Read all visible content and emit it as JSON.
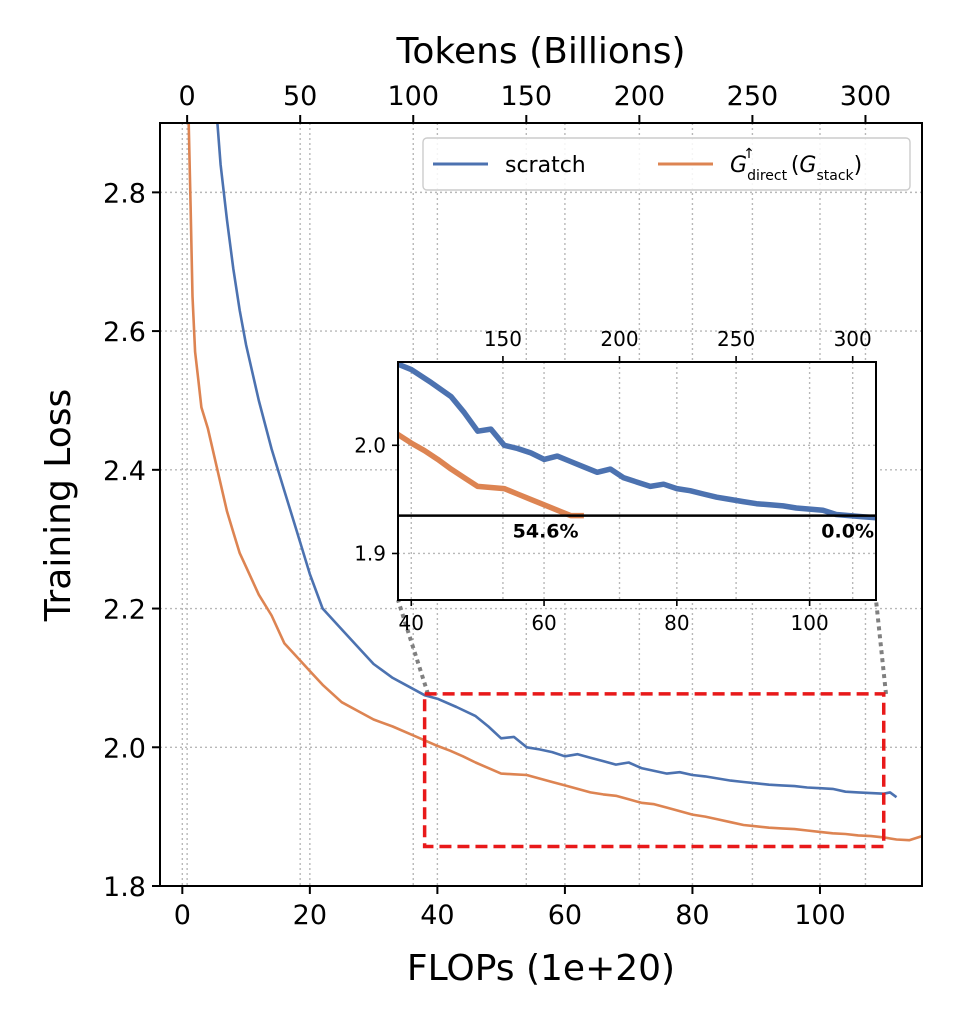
{
  "chart_data": [
    {
      "type": "line",
      "title": "",
      "xlabel": "FLOPs (1e+20)",
      "x2label": "Tokens (Billions)",
      "ylabel": "Training Loss",
      "xlim": [
        -3.5,
        116
      ],
      "ylim": [
        1.8,
        2.9
      ],
      "x2lim": [
        -12,
        325
      ],
      "xticks": [
        "0",
        "20",
        "40",
        "60",
        "80",
        "100"
      ],
      "xtick_values": [
        0,
        20,
        40,
        60,
        80,
        100
      ],
      "x2ticks": [
        "0",
        "50",
        "100",
        "150",
        "200",
        "250",
        "300"
      ],
      "x2tick_values": [
        0,
        50,
        100,
        150,
        200,
        250,
        300
      ],
      "yticks": [
        "1.8",
        "2.0",
        "2.2",
        "2.4",
        "2.6",
        "2.8"
      ],
      "ytick_values": [
        1.8,
        2.0,
        2.2,
        2.4,
        2.6,
        2.8
      ],
      "grid": true,
      "legend_position": "top-right",
      "zoom_box": {
        "x": [
          38,
          110
        ],
        "y": [
          1.857,
          2.077
        ]
      },
      "series": [
        {
          "name": "scratch",
          "color": "#4c72b0",
          "x": [
            5.5,
            6,
            7,
            8,
            9,
            10,
            12,
            14,
            16,
            18,
            20,
            22,
            25,
            28,
            30,
            33,
            35,
            38,
            40,
            43,
            46,
            48,
            50,
            52,
            54,
            56,
            58,
            60,
            62,
            64,
            66,
            68,
            70,
            72,
            74,
            76,
            78,
            80,
            82,
            84,
            86,
            88,
            90,
            92,
            94,
            96,
            98,
            100,
            102,
            104,
            106,
            108,
            110,
            111,
            112
          ],
          "y": [
            2.9,
            2.84,
            2.76,
            2.69,
            2.63,
            2.58,
            2.5,
            2.43,
            2.37,
            2.31,
            2.25,
            2.2,
            2.17,
            2.14,
            2.12,
            2.1,
            2.09,
            2.075,
            2.07,
            2.058,
            2.045,
            2.03,
            2.013,
            2.015,
            2.0,
            1.997,
            1.993,
            1.987,
            1.99,
            1.985,
            1.98,
            1.975,
            1.978,
            1.97,
            1.966,
            1.962,
            1.964,
            1.96,
            1.958,
            1.955,
            1.952,
            1.95,
            1.948,
            1.946,
            1.945,
            1.944,
            1.942,
            1.941,
            1.94,
            1.936,
            1.935,
            1.934,
            1.933,
            1.935,
            1.928
          ]
        },
        {
          "name": "G_direct↑(G_stack)",
          "color": "#dd8452",
          "x": [
            1.0,
            1.3,
            1.6,
            2,
            2.5,
            3,
            4,
            5,
            6,
            7,
            8,
            9,
            10,
            12,
            14,
            16,
            18,
            20,
            22,
            25,
            28,
            30,
            33,
            36,
            38,
            40,
            42,
            44,
            46,
            48,
            50,
            52,
            54,
            56,
            58,
            60,
            62,
            64,
            66,
            68,
            70,
            72,
            74,
            76,
            78,
            80,
            82,
            84,
            86,
            88,
            90,
            92,
            94,
            96,
            98,
            100,
            102,
            104,
            106,
            108,
            110,
            112,
            114,
            116
          ],
          "y": [
            2.9,
            2.78,
            2.65,
            2.57,
            2.53,
            2.49,
            2.46,
            2.42,
            2.38,
            2.34,
            2.31,
            2.28,
            2.26,
            2.22,
            2.19,
            2.15,
            2.13,
            2.11,
            2.09,
            2.065,
            2.05,
            2.04,
            2.03,
            2.018,
            2.01,
            2.002,
            1.995,
            1.987,
            1.978,
            1.97,
            1.962,
            1.961,
            1.96,
            1.955,
            1.95,
            1.945,
            1.94,
            1.935,
            1.932,
            1.93,
            1.925,
            1.92,
            1.918,
            1.913,
            1.908,
            1.903,
            1.9,
            1.896,
            1.892,
            1.888,
            1.886,
            1.884,
            1.883,
            1.882,
            1.88,
            1.878,
            1.876,
            1.875,
            1.873,
            1.872,
            1.87,
            1.867,
            1.866,
            1.872
          ]
        }
      ]
    },
    {
      "type": "line",
      "title": "",
      "xlim": [
        38,
        110
      ],
      "ylim": [
        1.857,
        2.077
      ],
      "x2lim": [
        105,
        310
      ],
      "xticks": [
        "40",
        "60",
        "80",
        "100"
      ],
      "xtick_values": [
        40,
        60,
        80,
        100
      ],
      "x2ticks": [
        "150",
        "200",
        "250",
        "300"
      ],
      "x2tick_values": [
        150,
        200,
        250,
        300
      ],
      "yticks": [
        "1.9",
        "2.0"
      ],
      "ytick_values": [
        1.9,
        2.0
      ],
      "grid": true,
      "reference_line": 1.935,
      "annotations": [
        "54.6%",
        "0.0%"
      ],
      "annotation_x": [
        65.5,
        110
      ]
    }
  ]
}
